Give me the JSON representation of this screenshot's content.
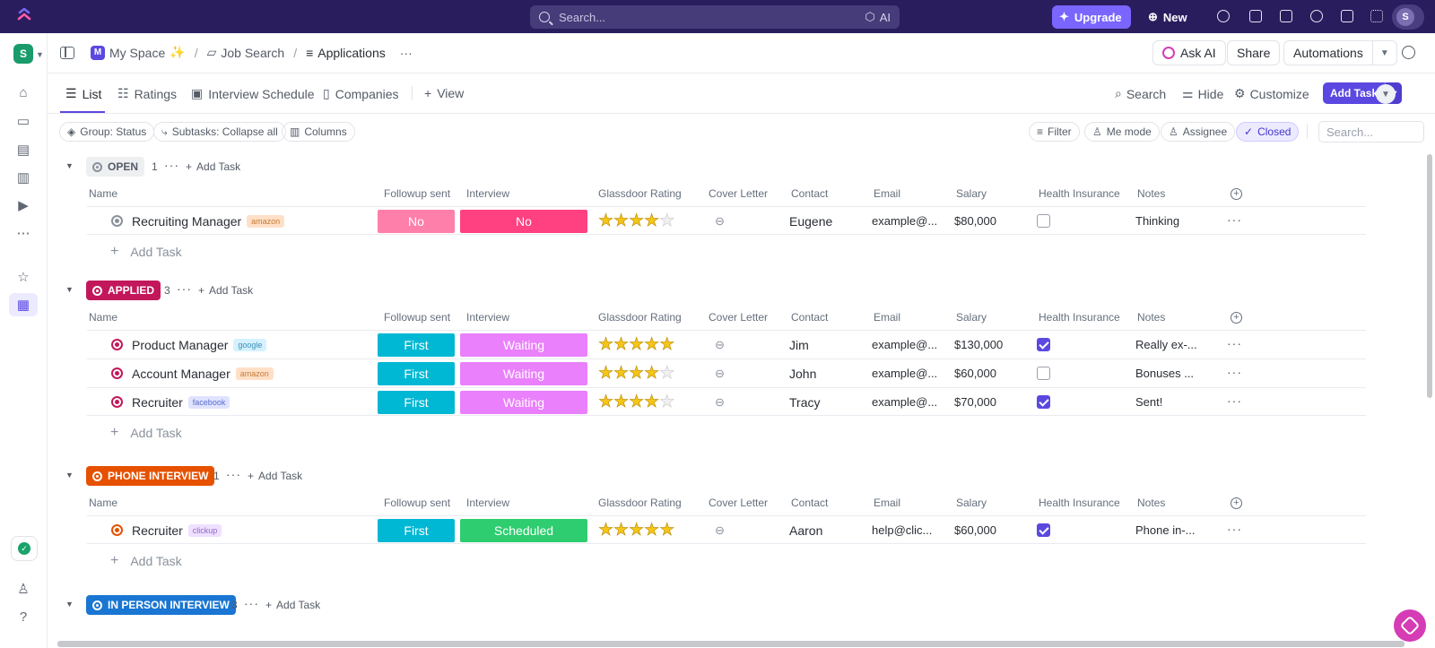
{
  "topbar": {
    "search_placeholder": "Search...",
    "ai_label": "AI",
    "upgrade_label": "Upgrade",
    "new_label": "New",
    "avatar_initial": "S"
  },
  "sidebar": {
    "workspace_initial": "S"
  },
  "breadcrumb": {
    "space": "My Space",
    "space_initial": "M",
    "space_emoji": "✨",
    "folder": "Job Search",
    "list": "Applications",
    "more": "···"
  },
  "header_actions": {
    "ask_ai": "Ask AI",
    "share": "Share",
    "automations": "Automations"
  },
  "views": {
    "tabs": [
      "List",
      "Ratings",
      "Interview Schedule",
      "Companies"
    ],
    "add_view": "View",
    "search": "Search",
    "hide": "Hide",
    "customize": "Customize",
    "add_task": "Add Task"
  },
  "filters": {
    "group": "Group: Status",
    "subtasks": "Subtasks: Collapse all",
    "columns": "Columns",
    "filter": "Filter",
    "me_mode": "Me mode",
    "assignee": "Assignee",
    "closed": "Closed",
    "search_placeholder": "Search..."
  },
  "columns": [
    "Name",
    "Followup sent",
    "Interview",
    "Glassdoor Rating",
    "Cover Letter",
    "Contact",
    "Email",
    "Salary",
    "Health Insurance",
    "Notes"
  ],
  "add_task_label": "Add Task",
  "groups": [
    {
      "status": "OPEN",
      "count": "1",
      "color": "#eeeff1",
      "tasks": [
        {
          "name": "Recruiting Manager",
          "tag": "amazon",
          "followup": "No",
          "followup_color": "#ff7fab",
          "interview": "No",
          "interview_color": "#ff4081",
          "stars": 4,
          "contact": "Eugene",
          "email": "example@...",
          "salary": "$80,000",
          "insurance": false,
          "notes": "Thinking"
        }
      ]
    },
    {
      "status": "APPLIED",
      "count": "3",
      "color": "#c2185b",
      "tasks": [
        {
          "name": "Product Manager",
          "tag": "google",
          "followup": "First",
          "followup_color": "#00b8d4",
          "interview": "Waiting",
          "interview_color": "#ea80fc",
          "stars": 5,
          "contact": "Jim",
          "email": "example@...",
          "salary": "$130,000",
          "insurance": true,
          "notes": "Really ex-..."
        },
        {
          "name": "Account Manager",
          "tag": "amazon",
          "followup": "First",
          "followup_color": "#00b8d4",
          "interview": "Waiting",
          "interview_color": "#ea80fc",
          "stars": 4,
          "contact": "John",
          "email": "example@...",
          "salary": "$60,000",
          "insurance": false,
          "notes": "Bonuses ..."
        },
        {
          "name": "Recruiter",
          "tag": "facebook",
          "followup": "First",
          "followup_color": "#00b8d4",
          "interview": "Waiting",
          "interview_color": "#ea80fc",
          "stars": 4,
          "contact": "Tracy",
          "email": "example@...",
          "salary": "$70,000",
          "insurance": true,
          "notes": "Sent!"
        }
      ]
    },
    {
      "status": "PHONE INTERVIEW",
      "count": "1",
      "color": "#e65100",
      "tasks": [
        {
          "name": "Recruiter",
          "tag": "clickup",
          "followup": "First",
          "followup_color": "#00b8d4",
          "interview": "Scheduled",
          "interview_color": "#2ecd6f",
          "stars": 5,
          "contact": "Aaron",
          "email": "help@clic...",
          "salary": "$60,000",
          "insurance": true,
          "notes": "Phone in-..."
        }
      ]
    },
    {
      "status": "IN PERSON INTERVIEW",
      "count": "3",
      "color": "#1976d2",
      "tasks": []
    }
  ]
}
